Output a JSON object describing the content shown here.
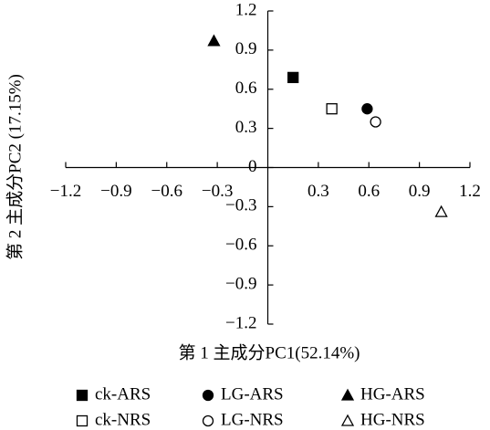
{
  "chart_data": {
    "type": "scatter",
    "x_label": "第 1 主成分PC1(52.14%)",
    "y_label": "第 2 主成分PC2 (17.15%)",
    "xlim": [
      -1.2,
      1.2
    ],
    "ylim": [
      -1.2,
      1.2
    ],
    "xticks": [
      {
        "value": -1.2,
        "label": "−1.2"
      },
      {
        "value": -0.9,
        "label": "−0.9"
      },
      {
        "value": -0.6,
        "label": "−0.6"
      },
      {
        "value": -0.3,
        "label": "−0.3"
      },
      0.3,
      0.6,
      0.9,
      1.2
    ],
    "yticks": [
      {
        "value": -1.2,
        "label": "−1.2"
      },
      {
        "value": -0.9,
        "label": "−0.9"
      },
      {
        "value": -0.6,
        "label": "−0.6"
      },
      {
        "value": -0.3,
        "label": "−0.3"
      },
      0,
      0.3,
      0.6,
      0.9,
      1.2
    ],
    "series": [
      {
        "name": "ck-ARS",
        "color": "#000000",
        "marker": "square",
        "filled": true,
        "x": [
          0.15
        ],
        "values": [
          0.69
        ]
      },
      {
        "name": "LG-ARS",
        "color": "#000000",
        "marker": "circle",
        "filled": true,
        "x": [
          0.59
        ],
        "values": [
          0.45
        ]
      },
      {
        "name": "HG-ARS",
        "color": "#000000",
        "marker": "triangle",
        "filled": true,
        "x": [
          -0.32
        ],
        "values": [
          0.97
        ]
      },
      {
        "name": "ck-NRS",
        "color": "#000000",
        "marker": "square",
        "filled": false,
        "x": [
          0.38
        ],
        "values": [
          0.45
        ]
      },
      {
        "name": "LG-NRS",
        "color": "#000000",
        "marker": "circle",
        "filled": false,
        "x": [
          0.64
        ],
        "values": [
          0.35
        ]
      },
      {
        "name": "HG-NRS",
        "color": "#000000",
        "marker": "triangle",
        "filled": false,
        "x": [
          1.03
        ],
        "values": [
          -0.34
        ]
      }
    ]
  }
}
